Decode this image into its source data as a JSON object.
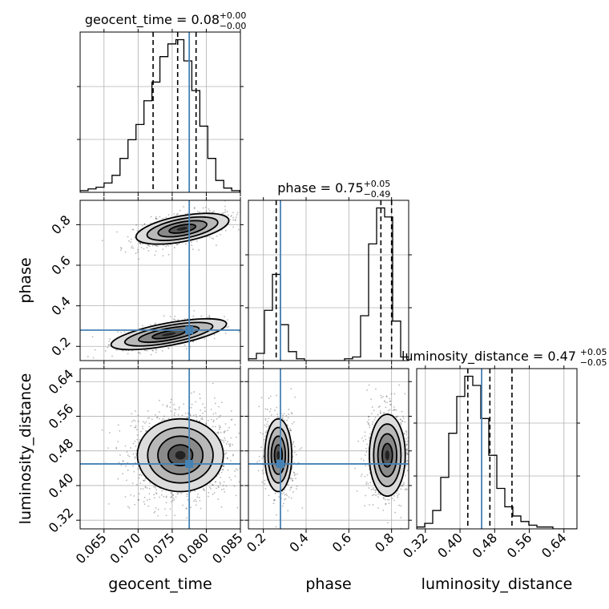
{
  "chart_data": {
    "type": "corner",
    "parameters": [
      "geocent_time",
      "phase",
      "luminosity_distance"
    ],
    "truths": {
      "geocent_time": 0.0775,
      "phase": 0.28,
      "luminosity_distance": 0.45
    },
    "titles": [
      {
        "param": "geocent_time",
        "prefix": "geocent_time = 0.08",
        "sup": "+0.00",
        "sub": "−0.00"
      },
      {
        "param": "phase",
        "prefix": "phase = 0.75",
        "sup": "+0.05",
        "sub": "−0.49"
      },
      {
        "param": "luminosity_distance",
        "prefix": "luminosity_distance = 0.47",
        "sup": "+0.05",
        "sub": "−0.05"
      }
    ],
    "xlabels": [
      "geocent_time",
      "phase",
      "luminosity_distance"
    ],
    "ylabels": [
      "phase",
      "luminosity_distance"
    ],
    "xlim": {
      "geocent_time": [
        0.0615,
        0.085
      ],
      "phase": [
        0.13,
        0.88
      ],
      "luminosity_distance": [
        0.3,
        0.67
      ]
    },
    "ticks": {
      "geocent_time": [
        "0.065",
        "0.070",
        "0.075",
        "0.080",
        "0.085"
      ],
      "phase": [
        "0.2",
        "0.4",
        "0.6",
        "0.8"
      ],
      "luminosity_distance": [
        "0.32",
        "0.40",
        "0.48",
        "0.56",
        "0.64"
      ]
    },
    "histograms": {
      "geocent_time": {
        "quantiles": [
          0.0722,
          0.0758,
          0.0785
        ],
        "edges_start": 0.0615,
        "bin_width": 0.00117,
        "counts": [
          2,
          4,
          6,
          11,
          20,
          40,
          62,
          80,
          108,
          130,
          160,
          175,
          180,
          155,
          120,
          78,
          40,
          14,
          5,
          2
        ]
      },
      "phase": {
        "quantiles": [
          0.26,
          0.75,
          0.8
        ],
        "edges_start": 0.13,
        "bin_width": 0.0375,
        "counts": [
          1,
          4,
          28,
          48,
          20,
          5,
          1,
          0,
          0,
          0,
          0,
          0,
          1,
          2,
          25,
          65,
          85,
          80,
          22,
          2
        ]
      },
      "luminosity_distance": {
        "quantiles": [
          0.418,
          0.469,
          0.52
        ],
        "edges_start": 0.3,
        "bin_width": 0.0185,
        "counts": [
          1,
          3,
          10,
          28,
          52,
          72,
          83,
          78,
          60,
          40,
          22,
          12,
          7,
          4,
          2,
          1,
          1,
          0,
          0,
          0
        ]
      }
    }
  }
}
